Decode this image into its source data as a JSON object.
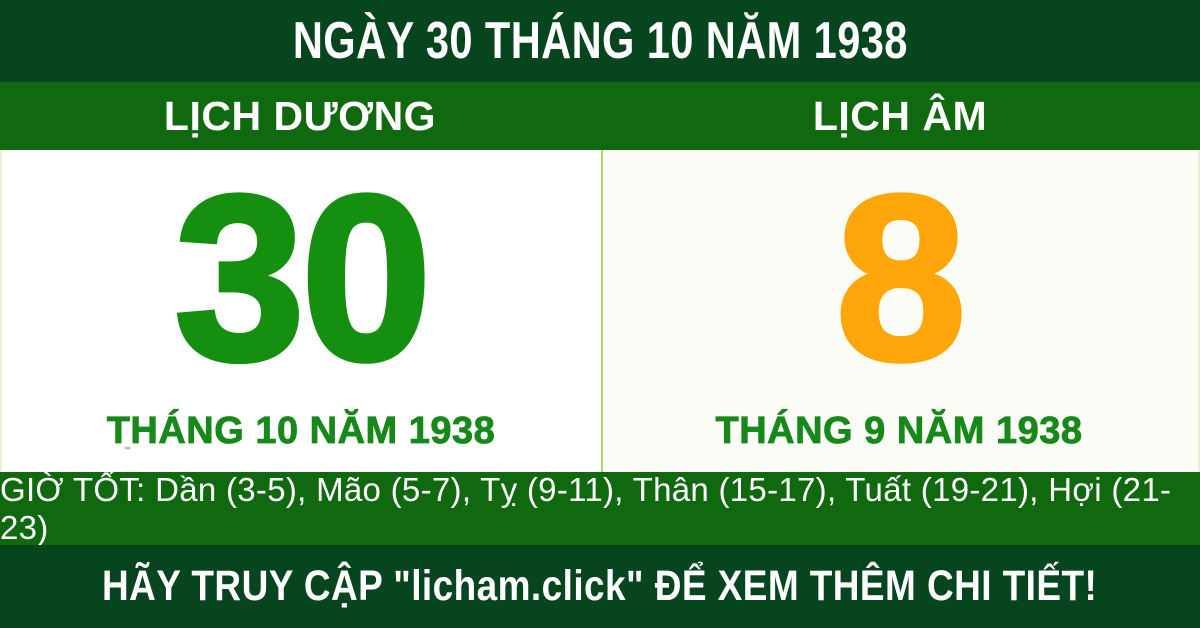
{
  "header": {
    "title": "NGÀY 30 THÁNG 10 NĂM 1938"
  },
  "solar": {
    "header": "LỊCH DƯƠNG",
    "day": "30",
    "month_year": "THÁNG 10 NĂM 1938"
  },
  "lunar": {
    "header": "LỊCH ÂM",
    "day": "8",
    "month_year": "THÁNG 9 NĂM 1938"
  },
  "good_hours": {
    "text": "GIỜ TỐT: Dần (3-5), Mão (5-7), Tỵ (9-11), Thân (15-17), Tuất (19-21), Hợi (21-23)"
  },
  "footer": {
    "text": "HÃY TRUY CẬP \"licham.click\" ĐỂ XEM THÊM CHI TIẾT!"
  },
  "artifact": {
    "dash": "-"
  },
  "colors": {
    "dark_green": "#07451f",
    "medium_green": "#11690f",
    "day_green": "#148f10",
    "label_green": "#17891a",
    "day_orange": "#ffa70a",
    "divider_green": "#abd56d",
    "panel_white": "#ffffff",
    "panel_offwhite": "#fdfdf8",
    "edge_line": "#e7f0d2",
    "text_white": "#ffffff"
  }
}
